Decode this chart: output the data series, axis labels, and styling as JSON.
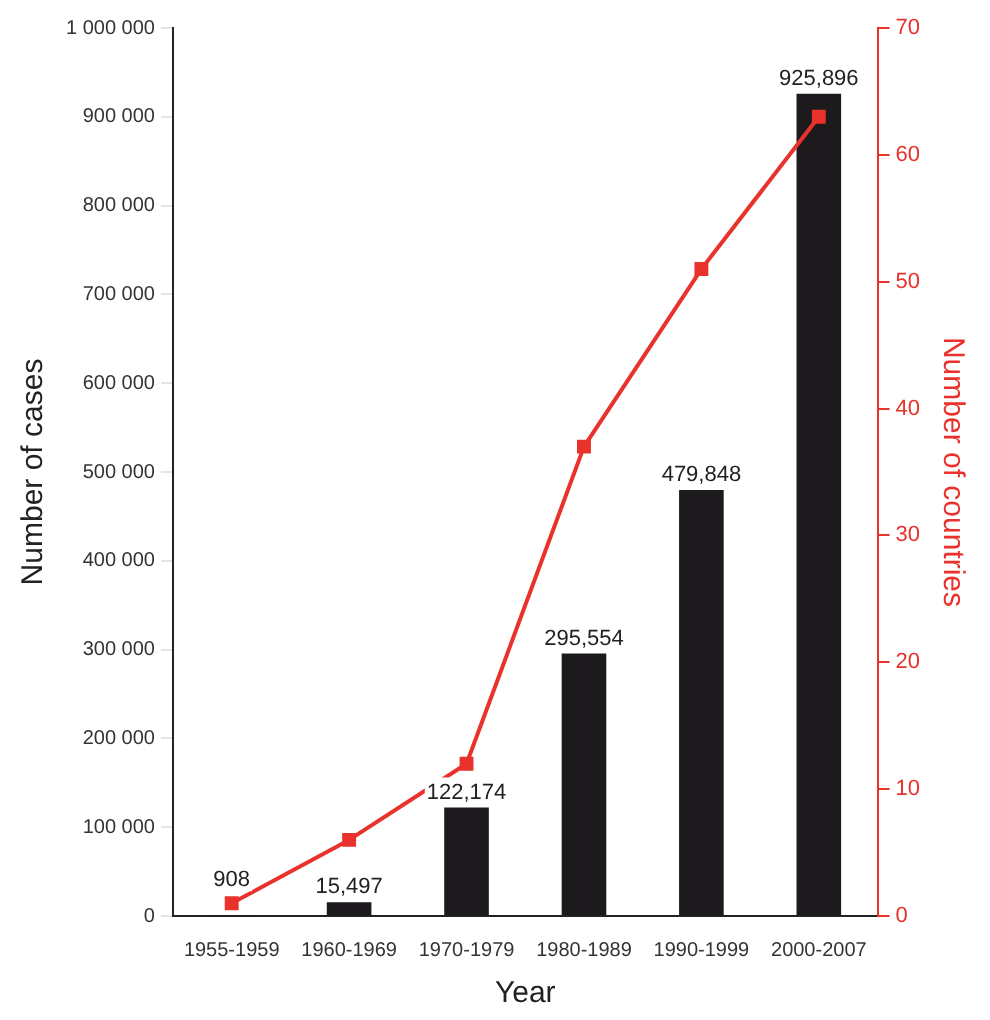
{
  "chart_data": {
    "type": "bar",
    "xlabel": "Year",
    "ylabel": "Number of cases",
    "y2label": "Number of countries",
    "categories": [
      "1955-1959",
      "1960-1969",
      "1970-1979",
      "1980-1989",
      "1990-1999",
      "2000-2007"
    ],
    "series": [
      {
        "color": "#1c1a1d",
        "values": [
          908,
          15497,
          122174,
          295554,
          479848,
          925896
        ],
        "value_labels": [
          "908",
          "15,497",
          "122,174",
          "295,554",
          "479,848",
          "925,896"
        ]
      },
      {
        "type": "line",
        "axis": "y2",
        "color": "#e8322b",
        "marker": "square",
        "values": [
          1,
          6,
          12,
          37,
          51,
          63
        ]
      }
    ],
    "ylim": [
      0,
      1000000
    ],
    "yticks": [
      0,
      {
        "value": 100000,
        "label": "100 000"
      },
      {
        "value": 200000,
        "label": "200 000"
      },
      {
        "value": 300000,
        "label": "300 000"
      },
      {
        "value": 400000,
        "label": "400 000"
      },
      {
        "value": 500000,
        "label": "500 000"
      },
      {
        "value": 600000,
        "label": "600 000"
      },
      {
        "value": 700000,
        "label": "700 000"
      },
      {
        "value": 800000,
        "label": "800 000"
      },
      {
        "value": 900000,
        "label": "900 000"
      },
      {
        "value": 1000000,
        "label": "1 000 000"
      }
    ],
    "y2lim": [
      0,
      70
    ],
    "y2ticks": [
      0,
      10,
      20,
      30,
      40,
      50,
      60,
      70
    ],
    "grid": false,
    "legend": false
  }
}
